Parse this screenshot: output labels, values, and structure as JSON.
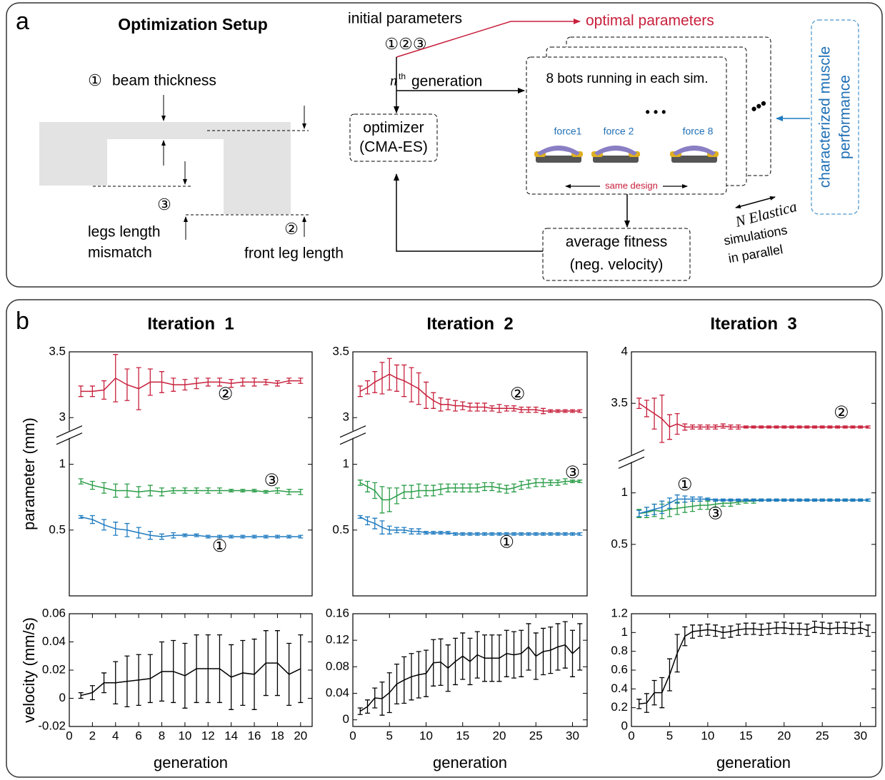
{
  "panel_a": {
    "label": "a",
    "title": "Optimization Setup",
    "beam_num": "①",
    "beam_thickness": "beam thickness",
    "mismatch_num": "③",
    "legs_length": "legs length",
    "mismatch": "mismatch",
    "front_num": "②",
    "front_leg_length": "front leg length",
    "initial_parameters": "initial parameters",
    "initial_nums": "①②③",
    "optimal_parameters": "optimal parameters",
    "gen_n": "n",
    "gen_th": "th",
    "generation": "generation",
    "optimizer": "optimizer",
    "cma_es": "(CMA-ES)",
    "bots_running": "8 bots running in each sim.",
    "force1": "force1",
    "force2": "force 2",
    "force8": "force 8",
    "same_design": "same design",
    "average_fitness": "average fitness",
    "neg_velocity": "(neg. velocity)",
    "n_elastica": "N Elastica",
    "simulations": "simulations",
    "in_parallel": "in parallel",
    "muscle1": "characterized muscle",
    "muscle2": "performance"
  },
  "panel_b": {
    "label": "b"
  },
  "chart_data": [
    {
      "type": "line",
      "title": "Iteration  1",
      "y_label": "parameter (mm)",
      "x": [
        1,
        2,
        3,
        4,
        5,
        6,
        7,
        8,
        9,
        10,
        11,
        12,
        13,
        14,
        15,
        16,
        17,
        18,
        19,
        20
      ],
      "xlim": [
        0,
        21
      ],
      "ylim": [
        0,
        3.5
      ],
      "y_break": [
        1.2,
        2.9
      ],
      "yticks": [
        0.5,
        1,
        3,
        3.5
      ],
      "series": [
        {
          "name": "②",
          "color": "#c8203c",
          "values": [
            3.2,
            3.2,
            3.21,
            3.3,
            3.25,
            3.22,
            3.27,
            3.27,
            3.25,
            3.25,
            3.26,
            3.27,
            3.27,
            3.26,
            3.27,
            3.27,
            3.27,
            3.26,
            3.28,
            3.28
          ],
          "errors": [
            0.04,
            0.04,
            0.07,
            0.18,
            0.12,
            0.16,
            0.1,
            0.08,
            0.05,
            0.04,
            0.04,
            0.03,
            0.03,
            0.03,
            0.03,
            0.03,
            0.02,
            0.02,
            0.02,
            0.02
          ]
        },
        {
          "name": "③",
          "color": "#2a9d48",
          "values": [
            0.87,
            0.84,
            0.82,
            0.8,
            0.8,
            0.79,
            0.8,
            0.79,
            0.8,
            0.8,
            0.8,
            0.8,
            0.8,
            0.8,
            0.8,
            0.8,
            0.79,
            0.8,
            0.79,
            0.79
          ],
          "errors": [
            0.02,
            0.03,
            0.04,
            0.05,
            0.05,
            0.04,
            0.04,
            0.03,
            0.02,
            0.02,
            0.02,
            0.02,
            0.02,
            0.01,
            0.01,
            0.01,
            0.01,
            0.02,
            0.02,
            0.02
          ]
        },
        {
          "name": "①",
          "color": "#1f7bc0",
          "values": [
            0.6,
            0.58,
            0.54,
            0.51,
            0.5,
            0.48,
            0.46,
            0.45,
            0.46,
            0.46,
            0.46,
            0.45,
            0.45,
            0.45,
            0.45,
            0.45,
            0.45,
            0.45,
            0.45,
            0.45
          ],
          "errors": [
            0.01,
            0.03,
            0.04,
            0.05,
            0.05,
            0.04,
            0.03,
            0.02,
            0.02,
            0.01,
            0.01,
            0.01,
            0.01,
            0.01,
            0.01,
            0.01,
            0.01,
            0.01,
            0.01,
            0.01
          ]
        }
      ]
    },
    {
      "type": "line",
      "title": "Iteration  2",
      "x": [
        1,
        2,
        3,
        4,
        5,
        6,
        7,
        8,
        9,
        10,
        11,
        12,
        13,
        14,
        15,
        16,
        17,
        18,
        19,
        20,
        21,
        22,
        23,
        24,
        25,
        26,
        27,
        28,
        29,
        30,
        31
      ],
      "xlim": [
        0,
        32
      ],
      "ylim": [
        0,
        3.5
      ],
      "y_break": [
        1.2,
        2.9
      ],
      "yticks": [
        0.5,
        1,
        3,
        3.5
      ],
      "series": [
        {
          "name": "②",
          "color": "#c8203c",
          "values": [
            3.2,
            3.23,
            3.27,
            3.3,
            3.33,
            3.3,
            3.28,
            3.25,
            3.22,
            3.17,
            3.13,
            3.1,
            3.1,
            3.09,
            3.09,
            3.08,
            3.08,
            3.08,
            3.07,
            3.07,
            3.07,
            3.07,
            3.06,
            3.06,
            3.06,
            3.05,
            3.05,
            3.05,
            3.05,
            3.05,
            3.05
          ],
          "errors": [
            0.04,
            0.05,
            0.08,
            0.12,
            0.12,
            0.1,
            0.12,
            0.13,
            0.12,
            0.1,
            0.06,
            0.05,
            0.04,
            0.04,
            0.03,
            0.03,
            0.03,
            0.03,
            0.02,
            0.03,
            0.02,
            0.02,
            0.02,
            0.02,
            0.02,
            0.02,
            0.01,
            0.01,
            0.01,
            0.01,
            0.01
          ]
        },
        {
          "name": "③",
          "color": "#2a9d48",
          "values": [
            0.86,
            0.83,
            0.8,
            0.73,
            0.73,
            0.76,
            0.79,
            0.79,
            0.8,
            0.8,
            0.8,
            0.81,
            0.82,
            0.82,
            0.82,
            0.82,
            0.82,
            0.83,
            0.83,
            0.82,
            0.81,
            0.82,
            0.84,
            0.85,
            0.86,
            0.86,
            0.86,
            0.86,
            0.87,
            0.87,
            0.87
          ],
          "errors": [
            0.02,
            0.04,
            0.06,
            0.1,
            0.09,
            0.06,
            0.05,
            0.05,
            0.05,
            0.04,
            0.04,
            0.04,
            0.03,
            0.03,
            0.03,
            0.03,
            0.03,
            0.03,
            0.03,
            0.03,
            0.03,
            0.03,
            0.03,
            0.03,
            0.03,
            0.03,
            0.02,
            0.02,
            0.02,
            0.01,
            0.01
          ]
        },
        {
          "name": "①",
          "color": "#1f7bc0",
          "values": [
            0.6,
            0.57,
            0.55,
            0.52,
            0.5,
            0.5,
            0.5,
            0.49,
            0.49,
            0.48,
            0.48,
            0.48,
            0.48,
            0.47,
            0.47,
            0.47,
            0.47,
            0.47,
            0.47,
            0.47,
            0.47,
            0.47,
            0.47,
            0.47,
            0.47,
            0.47,
            0.47,
            0.47,
            0.47,
            0.47,
            0.47
          ],
          "errors": [
            0.01,
            0.03,
            0.04,
            0.05,
            0.03,
            0.02,
            0.02,
            0.02,
            0.02,
            0.01,
            0.01,
            0.01,
            0.01,
            0.01,
            0.01,
            0.01,
            0.01,
            0.01,
            0.01,
            0.01,
            0.01,
            0.01,
            0.01,
            0.01,
            0.01,
            0.01,
            0.01,
            0.01,
            0.01,
            0.01,
            0.01
          ]
        }
      ]
    },
    {
      "type": "line",
      "title": "Iteration  3",
      "x": [
        1,
        2,
        3,
        4,
        5,
        6,
        7,
        8,
        9,
        10,
        11,
        12,
        13,
        14,
        15,
        16,
        17,
        18,
        19,
        20,
        21,
        22,
        23,
        24,
        25,
        26,
        27,
        28,
        29,
        30,
        31
      ],
      "xlim": [
        0,
        32
      ],
      "ylim": [
        0,
        4
      ],
      "y_break": [
        1.3,
        3.0
      ],
      "yticks": [
        0.5,
        1,
        3.5,
        4
      ],
      "series": [
        {
          "name": "②",
          "color": "#c8203c",
          "values": [
            3.5,
            3.45,
            3.4,
            3.35,
            3.27,
            3.3,
            3.27,
            3.27,
            3.27,
            3.27,
            3.27,
            3.28,
            3.27,
            3.27,
            3.27,
            3.27,
            3.27,
            3.27,
            3.27,
            3.27,
            3.27,
            3.27,
            3.27,
            3.27,
            3.27,
            3.27,
            3.27,
            3.27,
            3.27,
            3.27,
            3.27
          ],
          "errors": [
            0.05,
            0.08,
            0.15,
            0.23,
            0.12,
            0.1,
            0.03,
            0.02,
            0.02,
            0.02,
            0.02,
            0.02,
            0.02,
            0.02,
            0.01,
            0.01,
            0.01,
            0.01,
            0.01,
            0.01,
            0.01,
            0.01,
            0.01,
            0.01,
            0.01,
            0.01,
            0.01,
            0.01,
            0.01,
            0.01,
            0.01
          ]
        },
        {
          "name": "③",
          "color": "#2a9d48",
          "values": [
            0.8,
            0.81,
            0.83,
            0.82,
            0.84,
            0.85,
            0.86,
            0.87,
            0.88,
            0.88,
            0.89,
            0.9,
            0.9,
            0.91,
            0.92,
            0.92,
            0.93,
            0.93,
            0.93,
            0.93,
            0.93,
            0.93,
            0.93,
            0.93,
            0.93,
            0.93,
            0.93,
            0.93,
            0.93,
            0.93,
            0.93
          ],
          "errors": [
            0.04,
            0.05,
            0.06,
            0.07,
            0.07,
            0.06,
            0.05,
            0.05,
            0.04,
            0.04,
            0.03,
            0.03,
            0.03,
            0.02,
            0.02,
            0.02,
            0.01,
            0.01,
            0.01,
            0.01,
            0.01,
            0.01,
            0.01,
            0.01,
            0.01,
            0.01,
            0.01,
            0.01,
            0.01,
            0.01,
            0.01
          ]
        },
        {
          "name": "①",
          "color": "#1f7bc0",
          "values": [
            0.8,
            0.82,
            0.84,
            0.86,
            0.9,
            0.94,
            0.94,
            0.94,
            0.94,
            0.94,
            0.93,
            0.93,
            0.93,
            0.93,
            0.93,
            0.93,
            0.93,
            0.93,
            0.93,
            0.93,
            0.93,
            0.93,
            0.93,
            0.93,
            0.93,
            0.93,
            0.93,
            0.93,
            0.93,
            0.93,
            0.93
          ],
          "errors": [
            0.03,
            0.04,
            0.05,
            0.06,
            0.05,
            0.04,
            0.03,
            0.02,
            0.02,
            0.01,
            0.01,
            0.01,
            0.01,
            0.01,
            0.01,
            0.01,
            0.01,
            0.01,
            0.01,
            0.01,
            0.01,
            0.01,
            0.01,
            0.01,
            0.01,
            0.01,
            0.01,
            0.01,
            0.01,
            0.01,
            0.01
          ]
        }
      ]
    },
    {
      "type": "line",
      "y_label": "velocity (mm/s)",
      "x_label": "generation",
      "x": [
        1,
        2,
        3,
        4,
        5,
        6,
        7,
        8,
        9,
        10,
        11,
        12,
        13,
        14,
        15,
        16,
        17,
        18,
        19,
        20
      ],
      "xlim": [
        0,
        21
      ],
      "xticks": [
        0,
        2,
        4,
        6,
        8,
        10,
        12,
        14,
        16,
        18,
        20
      ],
      "ylim": [
        -0.02,
        0.06
      ],
      "yticks": [
        -0.02,
        0,
        0.02,
        0.04,
        0.06
      ],
      "series": [
        {
          "color": "#000000",
          "values": [
            0.002,
            0.004,
            0.011,
            0.011,
            0.012,
            0.013,
            0.014,
            0.019,
            0.019,
            0.016,
            0.021,
            0.021,
            0.021,
            0.015,
            0.018,
            0.017,
            0.025,
            0.025,
            0.017,
            0.021
          ],
          "errors": [
            0.002,
            0.005,
            0.007,
            0.015,
            0.018,
            0.018,
            0.017,
            0.021,
            0.022,
            0.023,
            0.024,
            0.024,
            0.024,
            0.023,
            0.023,
            0.025,
            0.023,
            0.023,
            0.022,
            0.024
          ]
        }
      ]
    },
    {
      "type": "line",
      "x_label": "generation",
      "x": [
        1,
        2,
        3,
        4,
        5,
        6,
        7,
        8,
        9,
        10,
        11,
        12,
        13,
        14,
        15,
        16,
        17,
        18,
        19,
        20,
        21,
        22,
        23,
        24,
        25,
        26,
        27,
        28,
        29,
        30,
        31
      ],
      "xlim": [
        0,
        32
      ],
      "xticks": [
        0,
        5,
        10,
        15,
        20,
        25,
        30
      ],
      "ylim": [
        -0.01,
        0.16
      ],
      "yticks": [
        0,
        0.04,
        0.08,
        0.12,
        0.16
      ],
      "series": [
        {
          "color": "#000000",
          "values": [
            0.013,
            0.02,
            0.033,
            0.032,
            0.041,
            0.054,
            0.06,
            0.065,
            0.068,
            0.07,
            0.086,
            0.087,
            0.078,
            0.088,
            0.096,
            0.088,
            0.098,
            0.093,
            0.093,
            0.093,
            0.1,
            0.098,
            0.1,
            0.11,
            0.096,
            0.103,
            0.105,
            0.11,
            0.113,
            0.1,
            0.11
          ],
          "errors": [
            0.005,
            0.01,
            0.015,
            0.025,
            0.03,
            0.03,
            0.035,
            0.035,
            0.035,
            0.035,
            0.035,
            0.035,
            0.035,
            0.035,
            0.035,
            0.035,
            0.035,
            0.035,
            0.035,
            0.035,
            0.035,
            0.035,
            0.035,
            0.035,
            0.035,
            0.035,
            0.035,
            0.035,
            0.035,
            0.035,
            0.035
          ]
        }
      ]
    },
    {
      "type": "line",
      "x_label": "generation",
      "x": [
        1,
        2,
        3,
        4,
        5,
        6,
        7,
        8,
        9,
        10,
        11,
        12,
        13,
        14,
        15,
        16,
        17,
        18,
        19,
        20,
        21,
        22,
        23,
        24,
        25,
        26,
        27,
        28,
        29,
        30,
        31
      ],
      "xlim": [
        0,
        32
      ],
      "xticks": [
        0,
        5,
        10,
        15,
        20,
        25,
        30
      ],
      "ylim": [
        0,
        1.2
      ],
      "yticks": [
        0,
        0.2,
        0.4,
        0.6,
        0.8,
        1,
        1.2
      ],
      "series": [
        {
          "color": "#000000",
          "values": [
            0.24,
            0.25,
            0.36,
            0.36,
            0.55,
            0.78,
            0.96,
            1.01,
            1.02,
            1.03,
            1.02,
            1.0,
            1.01,
            1.03,
            1.04,
            1.04,
            1.03,
            1.04,
            1.05,
            1.05,
            1.04,
            1.04,
            1.03,
            1.06,
            1.05,
            1.04,
            1.05,
            1.05,
            1.04,
            1.05,
            1.02
          ],
          "errors": [
            0.05,
            0.1,
            0.13,
            0.16,
            0.17,
            0.2,
            0.1,
            0.07,
            0.06,
            0.06,
            0.06,
            0.06,
            0.06,
            0.06,
            0.06,
            0.06,
            0.06,
            0.06,
            0.06,
            0.06,
            0.06,
            0.06,
            0.06,
            0.06,
            0.06,
            0.06,
            0.06,
            0.06,
            0.06,
            0.06,
            0.06
          ]
        }
      ]
    }
  ]
}
